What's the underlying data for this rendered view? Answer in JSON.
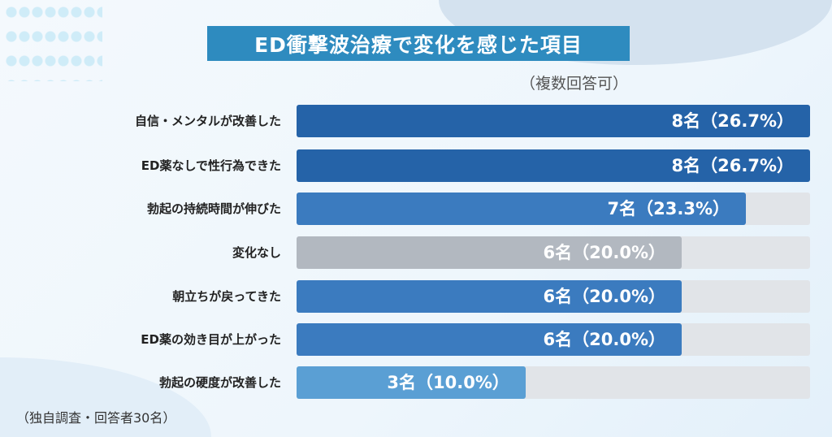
{
  "title": "ED衝撃波治療で変化を感じた項目",
  "note": "（複数回答可）",
  "footer": "（独自調査・回答者30名）",
  "chart_data": {
    "type": "bar",
    "orientation": "horizontal",
    "title": "ED衝撃波治療で変化を感じた項目",
    "max": 8,
    "categories": [
      "自信・メンタルが改善した",
      "ED薬なしで性行為できた",
      "勃起の持続時間が伸びた",
      "変化なし",
      "朝立ちが戻ってきた",
      "ED薬の効き目が上がった",
      "勃起の硬度が改善した"
    ],
    "values": [
      8,
      8,
      7,
      6,
      6,
      6,
      3
    ],
    "percents": [
      26.7,
      26.7,
      23.3,
      20.0,
      20.0,
      20.0,
      10.0
    ],
    "data_labels": [
      "8名（26.7%）",
      "8名（26.7%）",
      "7名（23.3%）",
      "6名（20.0%）",
      "6名（20.0%）",
      "6名（20.0%）",
      "3名（10.0%）"
    ],
    "colors": [
      "#2563a8",
      "#2563a8",
      "#3b7bbf",
      "#b2b8c0",
      "#3b7bbf",
      "#3b7bbf",
      "#5a9fd4"
    ],
    "track_color": "#e1e4e8"
  }
}
